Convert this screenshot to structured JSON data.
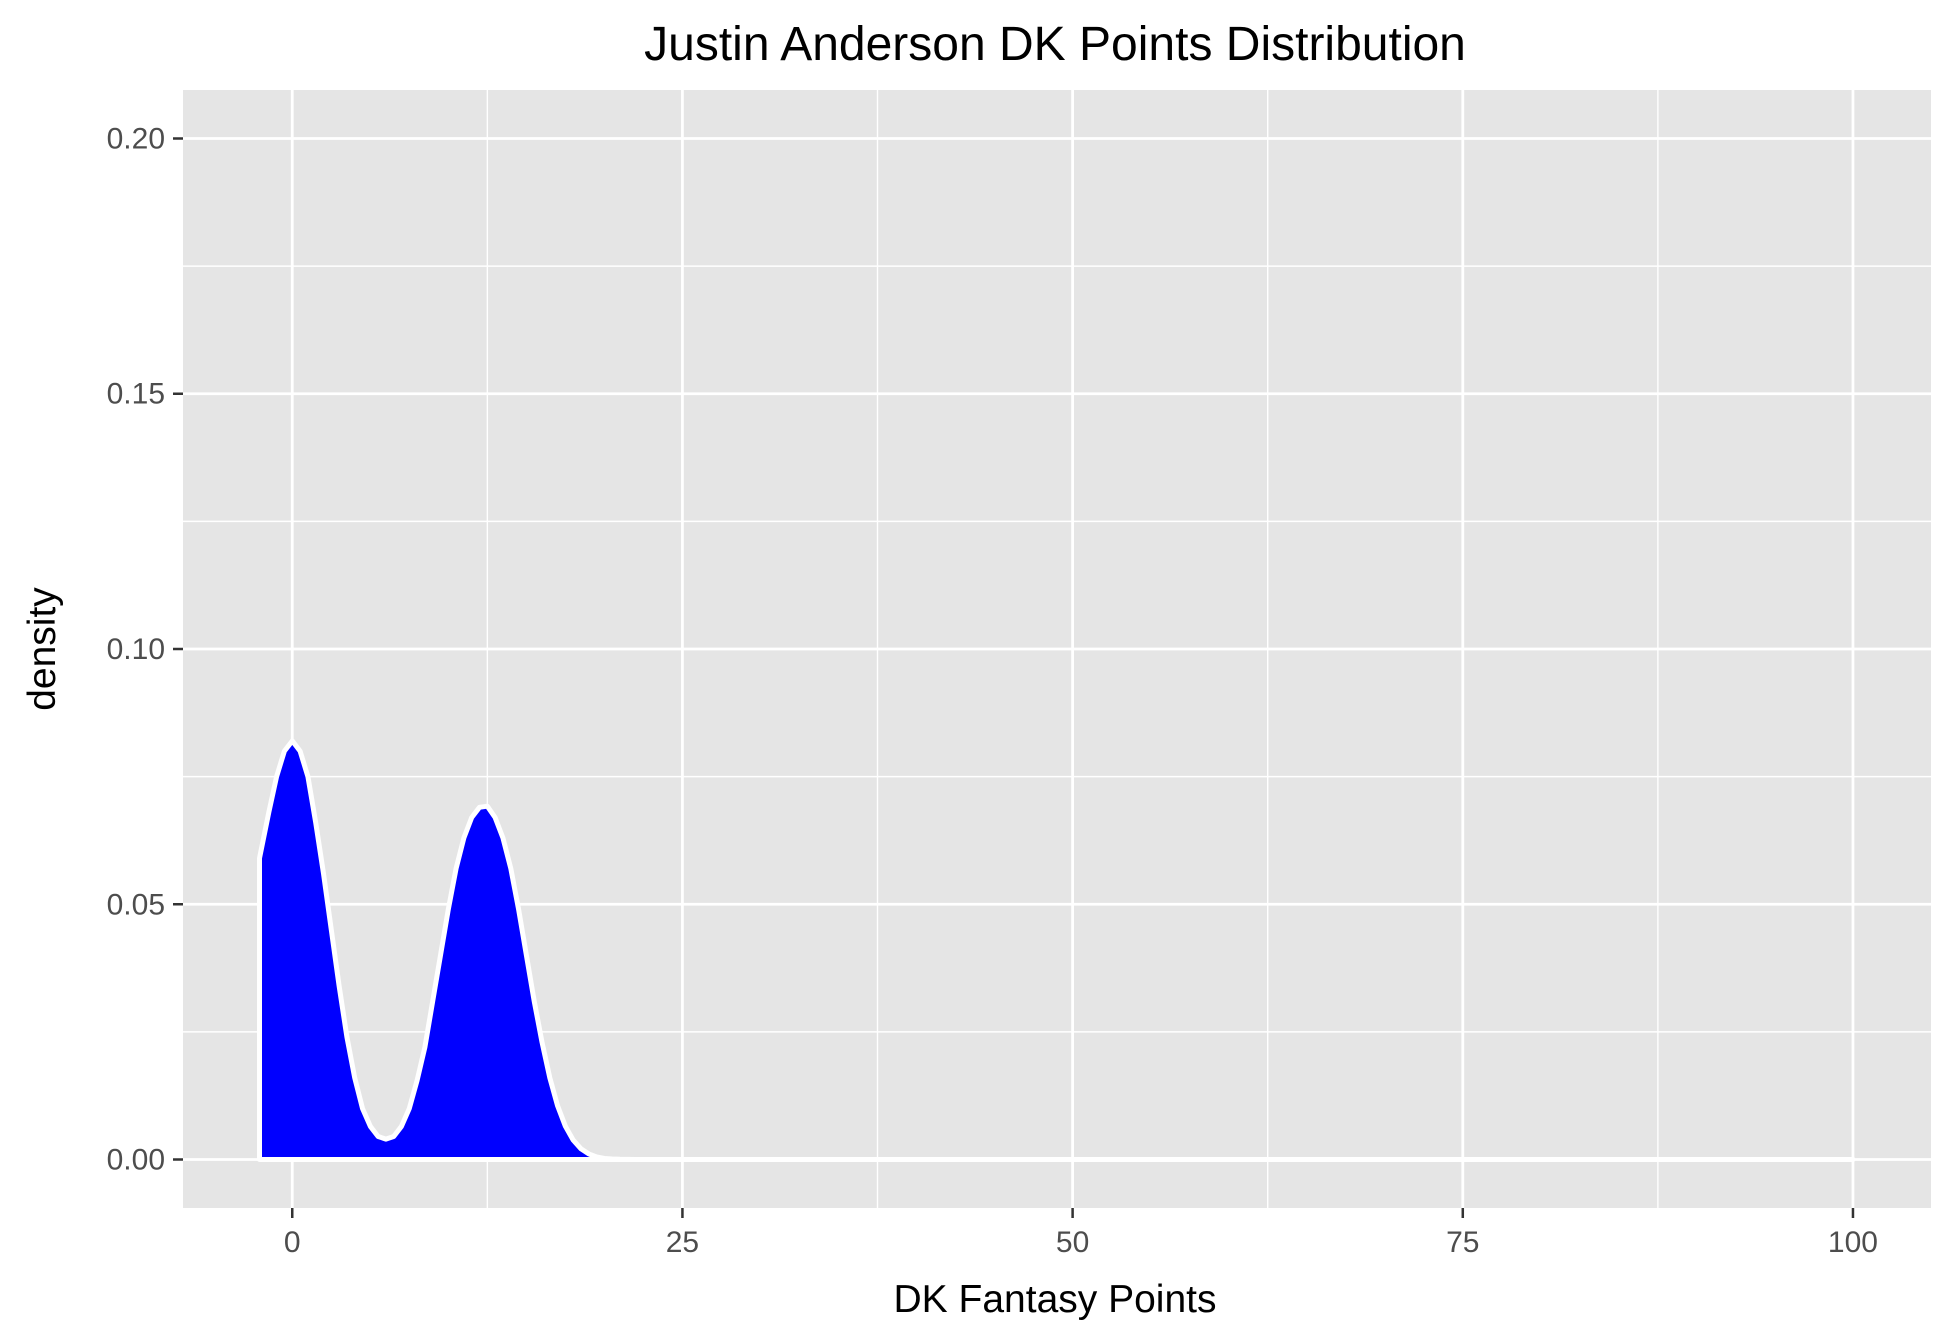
{
  "chart_data": {
    "type": "area",
    "title": "Justin Anderson DK Points Distribution",
    "xlabel": "DK Fantasy Points",
    "ylabel": "density",
    "xlim": [
      -7,
      105
    ],
    "ylim": [
      -0.0095,
      0.2095
    ],
    "x_ticks": [
      0,
      25,
      50,
      75,
      100
    ],
    "x_tick_labels": [
      "0",
      "25",
      "50",
      "75",
      "100"
    ],
    "y_ticks": [
      0.0,
      0.05,
      0.1,
      0.15,
      0.2
    ],
    "y_tick_labels": [
      "0.00",
      "0.05",
      "0.10",
      "0.15",
      "0.20"
    ],
    "grid": true,
    "panel_background": "#e5e5e5",
    "grid_color": "#ffffff",
    "fill_color": "#0000ff",
    "outline_color": "#ffffff",
    "series": [
      {
        "x": [
          -2.1,
          -1.5,
          -1,
          -0.5,
          0,
          0.5,
          1,
          1.5,
          2,
          2.5,
          3,
          3.5,
          4,
          4.5,
          5,
          5.5,
          6,
          6.5,
          7,
          7.5,
          8,
          8.5,
          9,
          9.5,
          10,
          10.5,
          11,
          11.5,
          12,
          12.5,
          13,
          13.5,
          14,
          14.5,
          15,
          15.5,
          16,
          16.5,
          17,
          17.5,
          18,
          18.5,
          19,
          19.5,
          20,
          20.5,
          21,
          22,
          23,
          24,
          25,
          30,
          40,
          50,
          60,
          70,
          80,
          90,
          100
        ],
        "y": [
          0.059,
          0.068,
          0.075,
          0.08,
          0.082,
          0.08,
          0.075,
          0.066,
          0.056,
          0.045,
          0.034,
          0.024,
          0.016,
          0.01,
          0.0065,
          0.0045,
          0.004,
          0.0045,
          0.0065,
          0.01,
          0.0155,
          0.022,
          0.031,
          0.04,
          0.049,
          0.057,
          0.063,
          0.067,
          0.069,
          0.0692,
          0.067,
          0.063,
          0.057,
          0.049,
          0.04,
          0.031,
          0.023,
          0.016,
          0.0105,
          0.0065,
          0.0038,
          0.0021,
          0.0011,
          0.0005,
          0.0002,
          0.0001,
          4e-05,
          1e-05,
          0,
          0,
          0,
          0,
          0,
          0,
          0,
          0,
          0,
          0,
          0
        ]
      }
    ]
  }
}
